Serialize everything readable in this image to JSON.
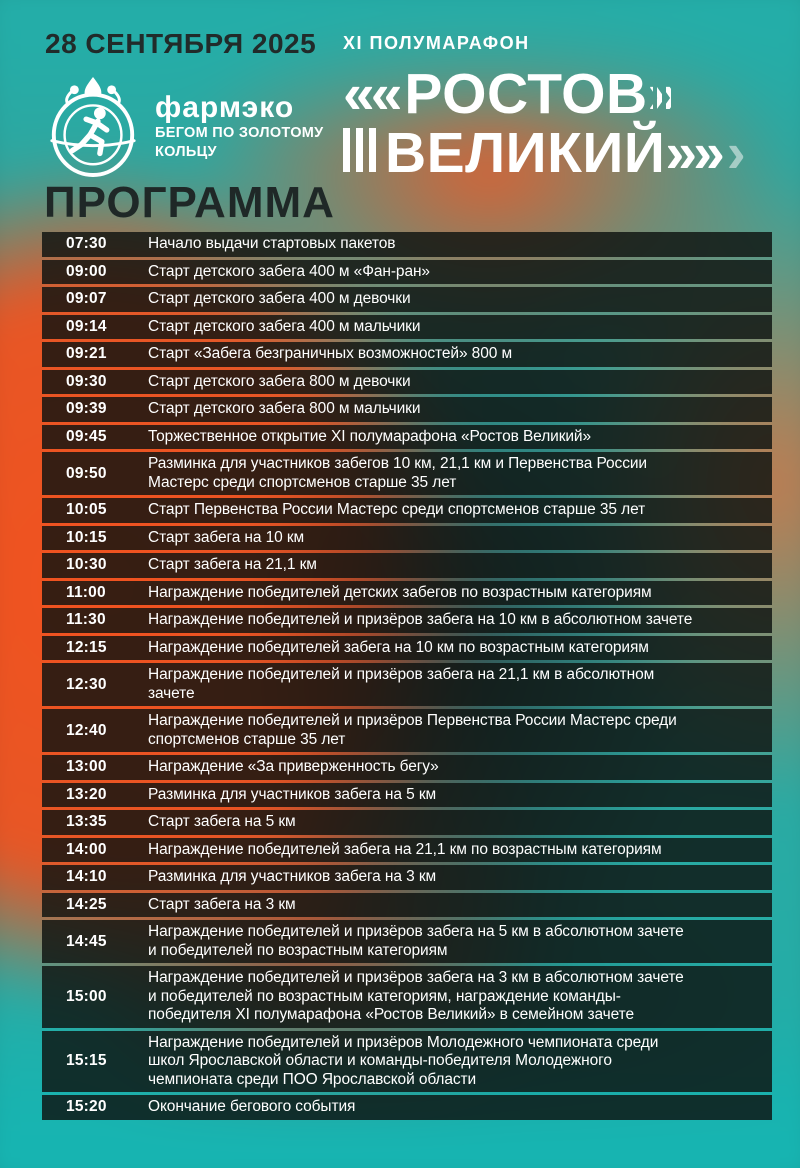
{
  "header": {
    "date": "28 СЕНТЯБРЯ 2025",
    "series": "XI ПОЛУМАРАФОН",
    "title": {
      "line1_prefix": "««",
      "line1_text": "РОСТОВ",
      "line1_suffix": "»",
      "line2_text": "ВЕЛИКИЙ",
      "line2_suffix": "»»",
      "line2_fade": "›"
    },
    "logo": {
      "icon": "runner-ring-dome-emblem-icon",
      "brand": "фармэко",
      "tagline_line1": "БЕГОМ ПО ЗОЛОТОМУ",
      "tagline_line2": "КОЛЬЦУ"
    },
    "section_title": "ПРОГРАММА"
  },
  "schedule": [
    {
      "time": "07:30",
      "event": "Начало выдачи стартовых пакетов"
    },
    {
      "time": "09:00",
      "event": "Старт детского забега 400 м «Фан-ран»"
    },
    {
      "time": "09:07",
      "event": "Старт детского забега 400 м девочки"
    },
    {
      "time": "09:14",
      "event": "Старт детского забега 400 м мальчики"
    },
    {
      "time": "09:21",
      "event": "Старт «Забега безграничных возможностей» 800 м"
    },
    {
      "time": "09:30",
      "event": "Старт детского забега 800 м девочки"
    },
    {
      "time": "09:39",
      "event": "Старт детского забега 800 м мальчики"
    },
    {
      "time": "09:45",
      "event": "Торжественное открытие XI полумарафона «Ростов Великий»"
    },
    {
      "time": "09:50",
      "event": "Разминка для участников забегов 10 км, 21,1 км и Первенства России Мастерс среди спортсменов старше 35 лет"
    },
    {
      "time": "10:05",
      "event": "Старт Первенства России Мастерс среди спортсменов старше 35 лет"
    },
    {
      "time": "10:15",
      "event": "Старт забега на 10 км"
    },
    {
      "time": "10:30",
      "event": "Старт забега на 21,1 км"
    },
    {
      "time": "11:00",
      "event": "Награждение победителей детских забегов по возрастным категориям"
    },
    {
      "time": "11:30",
      "event": "Награждение победителей и призёров забега на 10 км в абсолютном зачете"
    },
    {
      "time": "12:15",
      "event": "Награждение победителей забега на 10 км по возрастным категориям"
    },
    {
      "time": "12:30",
      "event": "Награждение победителей и призёров забега на 21,1 км в абсолютном зачете"
    },
    {
      "time": "12:40",
      "event": "Награждение победителей и призёров Первенства России Мастерс среди спортсменов старше 35 лет"
    },
    {
      "time": "13:00",
      "event": "Награждение «За приверженность бегу»"
    },
    {
      "time": "13:20",
      "event": "Разминка для участников забега на 5 км"
    },
    {
      "time": "13:35",
      "event": "Старт забега на 5 км"
    },
    {
      "time": "14:00",
      "event": "Награждение победителей забега на 21,1 км по возрастным категориям"
    },
    {
      "time": "14:10",
      "event": "Разминка для участников забега на 3 км"
    },
    {
      "time": "14:25",
      "event": "Старт забега на 3 км"
    },
    {
      "time": "14:45",
      "event": "Награждение победителей и призёров забега на 5 км в абсолютном зачете и победителей по возрастным категориям"
    },
    {
      "time": "15:00",
      "event": "Награждение победителей и призёров забега на 3 км в абсолютном зачете и победителей по возрастным категориям, награждение команды-победителя XI полумарафона «Ростов Великий» в семейном зачете"
    },
    {
      "time": "15:15",
      "event": "Награждение победителей и призёров Молодежного чемпионата среди школ Ярославской области и команды-победителя Молодежного чемпионата среди ПОО Ярославской области"
    },
    {
      "time": "15:20",
      "event": "Окончание бегового события"
    }
  ],
  "colors": {
    "teal_top": "#28a9a4",
    "turquoise_bottom": "#17b4b1",
    "orange": "#f1521f",
    "row_overlay": "rgba(13,18,16,0.82)",
    "text_light": "#ffffff",
    "text_dark": "#1f2827"
  }
}
